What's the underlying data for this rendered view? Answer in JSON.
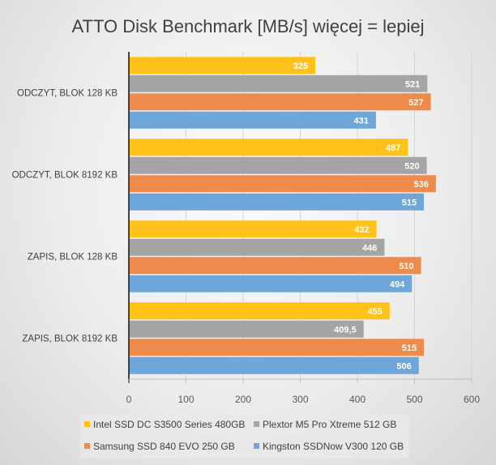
{
  "chart_data": {
    "type": "bar",
    "orientation": "horizontal",
    "title": "ATTO Disk Benchmark [MB/s] więcej = lepiej",
    "categories": [
      "ODCZYT, BLOK 128 KB",
      "ODCZYT, BLOK 8192 KB",
      "ZAPIS, BLOK 128 KB",
      "ZAPIS, BLOK 8192 KB"
    ],
    "series": [
      {
        "name": "Intel SSD DC S3500 Series 480GB",
        "color": "#FFC21A",
        "values": [
          325,
          487,
          432,
          455
        ],
        "labels": [
          "325",
          "487",
          "432",
          "455"
        ]
      },
      {
        "name": "Plextor M5 Pro Xtreme 512 GB",
        "color": "#A5A5A5",
        "values": [
          521,
          520,
          446,
          409.5
        ],
        "labels": [
          "521",
          "520",
          "446",
          "409,5"
        ]
      },
      {
        "name": "Samsung SSD 840 EVO 250 GB",
        "color": "#ED8B4C",
        "values": [
          527,
          536,
          510,
          515
        ],
        "labels": [
          "527",
          "536",
          "510",
          "515"
        ]
      },
      {
        "name": "Kingston SSDNow V300 120 GB",
        "color": "#6FA6DA",
        "values": [
          431,
          515,
          494,
          506
        ],
        "labels": [
          "431",
          "515",
          "494",
          "506"
        ]
      }
    ],
    "xlim": [
      0,
      600
    ],
    "xticks": [
      "0",
      "100",
      "200",
      "300",
      "400",
      "500",
      "600"
    ],
    "grid": true,
    "legend": "bottom"
  }
}
